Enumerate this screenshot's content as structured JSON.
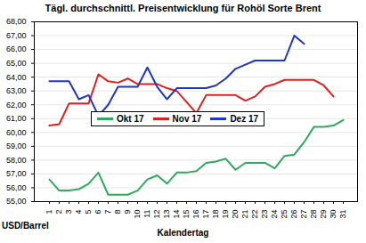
{
  "chart_data": {
    "type": "line",
    "title": "Tägl. durchschnittl. Preisentwicklung für Rohöl Sorte Brent",
    "x_label": "Kalendertag",
    "y_label": "USD/Barrel",
    "categories": [
      "1",
      "2",
      "3",
      "4",
      "5",
      "6",
      "7",
      "8",
      "9",
      "10",
      "11",
      "12",
      "13",
      "14",
      "15",
      "16",
      "17",
      "18",
      "19",
      "20",
      "21",
      "22",
      "23",
      "24",
      "25",
      "26",
      "27",
      "28",
      "29",
      "30",
      "31"
    ],
    "series": [
      {
        "name": "Okt 17",
        "color": "#2eaa5c",
        "values": [
          56.6,
          55.8,
          55.8,
          55.9,
          56.3,
          57.1,
          55.5,
          55.5,
          55.5,
          55.8,
          56.6,
          56.9,
          56.3,
          57.1,
          57.1,
          57.2,
          57.8,
          57.9,
          58.1,
          57.3,
          57.8,
          57.8,
          57.8,
          57.4,
          58.3,
          58.4,
          59.3,
          60.4,
          60.4,
          60.5,
          60.9
        ]
      },
      {
        "name": "Nov 17",
        "color": "#e0201c",
        "values": [
          60.5,
          60.6,
          62.1,
          62.1,
          62.1,
          64.2,
          63.7,
          63.6,
          63.9,
          63.5,
          63.5,
          63.5,
          63.2,
          63.0,
          62.2,
          61.4,
          62.7,
          62.7,
          62.7,
          62.7,
          62.3,
          62.6,
          63.3,
          63.5,
          63.8,
          63.8,
          63.8,
          63.8,
          63.4,
          62.6,
          null
        ]
      },
      {
        "name": "Dez 17",
        "color": "#1f35c8",
        "values": [
          63.7,
          63.7,
          63.7,
          62.4,
          62.7,
          61.2,
          62.0,
          63.3,
          63.3,
          63.3,
          64.7,
          63.3,
          62.4,
          63.2,
          63.2,
          63.2,
          63.2,
          63.4,
          63.9,
          64.6,
          64.9,
          65.2,
          65.2,
          65.2,
          65.2,
          67.0,
          66.4,
          null,
          null,
          null,
          null
        ]
      }
    ],
    "ylim": [
      55,
      68
    ],
    "yticks": [
      {
        "value": 55,
        "label": "55,00"
      },
      {
        "value": 56,
        "label": "56,00"
      },
      {
        "value": 57,
        "label": "57,00"
      },
      {
        "value": 58,
        "label": "58,00"
      },
      {
        "value": 59,
        "label": "59,00"
      },
      {
        "value": 60,
        "label": "60,00"
      },
      {
        "value": 61,
        "label": "61,00"
      },
      {
        "value": 62,
        "label": "62,00"
      },
      {
        "value": 63,
        "label": "63,00"
      },
      {
        "value": 64,
        "label": "64,00"
      },
      {
        "value": 65,
        "label": "65,00"
      },
      {
        "value": 66,
        "label": "66,00"
      },
      {
        "value": 67,
        "label": "67,00"
      },
      {
        "value": 68,
        "label": "68,00"
      }
    ],
    "grid": true,
    "legend": "center"
  }
}
